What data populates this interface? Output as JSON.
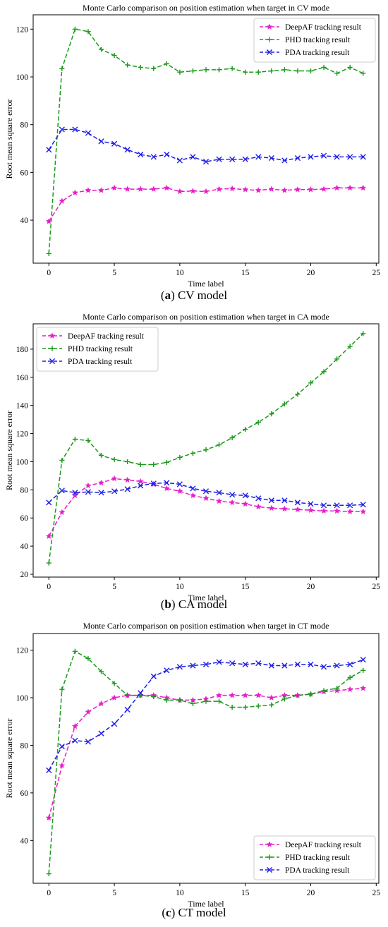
{
  "chart_data": [
    {
      "type": "line",
      "title": "Monte Carlo comparison on position estimation when target in CV mode",
      "xlabel": "Time label",
      "ylabel": "Root mean square error",
      "xlim": [
        -1.2,
        25.2
      ],
      "ylim": [
        22,
        126
      ],
      "xticks": [
        0,
        5,
        10,
        15,
        20,
        25
      ],
      "yticks": [
        40,
        60,
        80,
        100,
        120
      ],
      "legend_position": "top-right",
      "caption_letter": "a",
      "caption_text": "CV model",
      "x": [
        0,
        1,
        2,
        3,
        4,
        5,
        6,
        7,
        8,
        9,
        10,
        11,
        12,
        13,
        14,
        15,
        16,
        17,
        18,
        19,
        20,
        21,
        22,
        23,
        24
      ],
      "series": [
        {
          "name": "DeepAF tracking result",
          "color": "#e61ec8",
          "marker": "star",
          "values": [
            39.5,
            48,
            51.5,
            52.5,
            52.5,
            53.5,
            53,
            53,
            53,
            53.5,
            52,
            52.2,
            52,
            53,
            53.2,
            52.8,
            52.5,
            53,
            52.5,
            52.8,
            52.8,
            53,
            53.5,
            53.5,
            53.5
          ]
        },
        {
          "name": "PHD tracking result",
          "color": "#1a9a1a",
          "marker": "plus",
          "values": [
            26,
            103.5,
            120,
            119,
            111.5,
            109,
            105,
            104,
            103.5,
            105.5,
            102,
            102.5,
            103,
            103,
            103.5,
            102,
            102,
            102.5,
            103,
            102.5,
            102.5,
            104,
            101.5,
            104,
            101.5
          ]
        },
        {
          "name": "PDA tracking result",
          "color": "#1e1ee6",
          "marker": "x",
          "values": [
            69.5,
            78,
            78,
            76.5,
            73,
            72,
            69.5,
            67.5,
            66.5,
            67.5,
            65,
            66.5,
            64.5,
            65.5,
            65.5,
            65.5,
            66.5,
            66,
            65,
            66,
            66.5,
            67,
            66.5,
            66.5,
            66.5
          ]
        }
      ]
    },
    {
      "type": "line",
      "title": "Monte Carlo comparison on position estimation when target in CA mode",
      "xlabel": "Time label",
      "ylabel": "Root mean square error",
      "xlim": [
        -1.2,
        25.2
      ],
      "ylim": [
        18,
        198
      ],
      "xticks": [
        0,
        5,
        10,
        15,
        20,
        25
      ],
      "yticks": [
        20,
        40,
        60,
        80,
        100,
        120,
        140,
        160,
        180
      ],
      "legend_position": "top-left",
      "caption_letter": "b",
      "caption_text": "CA model",
      "x": [
        0,
        1,
        2,
        3,
        4,
        5,
        6,
        7,
        8,
        9,
        10,
        11,
        12,
        13,
        14,
        15,
        16,
        17,
        18,
        19,
        20,
        21,
        22,
        23,
        24
      ],
      "series": [
        {
          "name": "DeepAF tracking result",
          "color": "#e61ec8",
          "marker": "star",
          "values": [
            47,
            64,
            76,
            83,
            85,
            88,
            87,
            86,
            84,
            81,
            79,
            76,
            74,
            72,
            71,
            70,
            68,
            67,
            66.5,
            66,
            65.5,
            65,
            65,
            64.5,
            64.5
          ]
        },
        {
          "name": "PHD tracking result",
          "color": "#1a9a1a",
          "marker": "plus",
          "values": [
            28,
            101,
            116,
            115,
            104.5,
            101.5,
            100,
            98,
            98,
            99.5,
            103,
            106,
            108.5,
            112,
            117,
            123,
            128,
            134,
            141,
            148,
            156,
            164,
            173,
            182,
            191
          ]
        },
        {
          "name": "PDA tracking result",
          "color": "#1e1ee6",
          "marker": "x",
          "values": [
            71,
            79.5,
            78,
            78.5,
            78,
            79,
            80.5,
            83,
            84.5,
            85,
            84,
            81,
            79,
            78,
            76.5,
            76,
            74,
            72.5,
            72.5,
            71,
            70,
            69,
            69,
            69,
            69.5
          ]
        }
      ]
    },
    {
      "type": "line",
      "title": "Monte Carlo comparison on position estimation when target in CT mode",
      "xlabel": "Time label",
      "ylabel": "Root mean square error",
      "xlim": [
        -1.2,
        25.2
      ],
      "ylim": [
        22,
        127
      ],
      "xticks": [
        0,
        5,
        10,
        15,
        20,
        25
      ],
      "yticks": [
        40,
        60,
        80,
        100,
        120
      ],
      "legend_position": "bottom-right",
      "caption_letter": "c",
      "caption_text": "CT model",
      "x": [
        0,
        1,
        2,
        3,
        4,
        5,
        6,
        7,
        8,
        9,
        10,
        11,
        12,
        13,
        14,
        15,
        16,
        17,
        18,
        19,
        20,
        21,
        22,
        23,
        24
      ],
      "series": [
        {
          "name": "DeepAF tracking result",
          "color": "#e61ec8",
          "marker": "star",
          "values": [
            49.5,
            71.5,
            88,
            94,
            97.5,
            100,
            101,
            101,
            101,
            100,
            99,
            99,
            99.5,
            101,
            101,
            101,
            101,
            100,
            101,
            101,
            101.5,
            102.5,
            103,
            103.5,
            104
          ]
        },
        {
          "name": "PHD tracking result",
          "color": "#1a9a1a",
          "marker": "plus",
          "values": [
            26,
            103.5,
            119.5,
            116.5,
            111,
            106,
            101,
            101,
            100.5,
            99,
            99,
            97.5,
            98.5,
            98.5,
            96,
            96,
            96.5,
            97,
            99.5,
            101,
            101.5,
            103,
            104,
            108.5,
            111.5
          ]
        },
        {
          "name": "PDA tracking result",
          "color": "#1e1ee6",
          "marker": "x",
          "values": [
            69.5,
            79.5,
            82,
            81.5,
            85,
            89,
            95,
            102,
            109,
            111.5,
            113,
            113.5,
            114,
            115,
            114.5,
            114,
            114.5,
            113.5,
            113.5,
            114,
            114,
            113,
            113.5,
            114,
            116
          ]
        }
      ]
    }
  ]
}
